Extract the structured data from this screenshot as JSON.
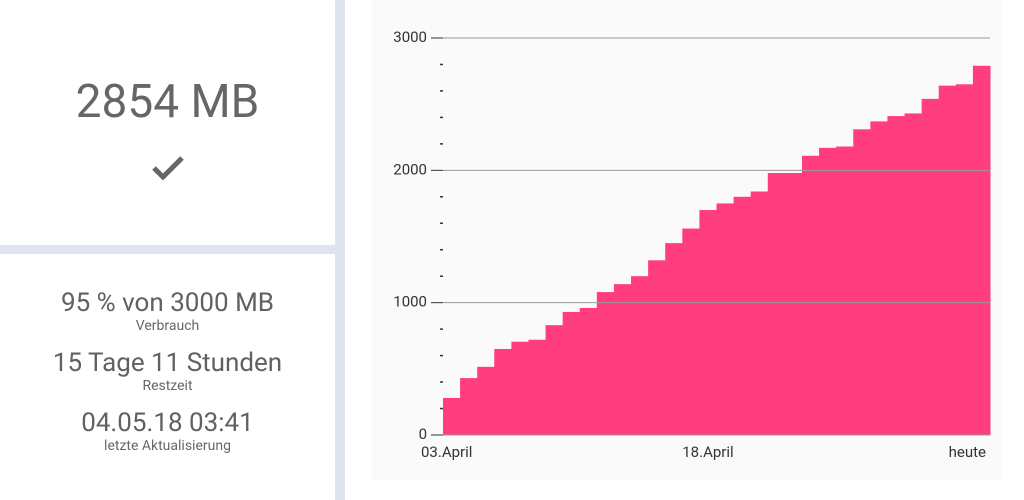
{
  "summary": {
    "amount": "2854 MB",
    "usage": "95 % von 3000 MB",
    "usage_label": "Verbrauch",
    "remaining": "15 Tage 11 Stunden",
    "remaining_label": "Restzeit",
    "updated": "04.05.18 03:41",
    "updated_label": "letzte Aktualisierung"
  },
  "chart_data": {
    "type": "step-area",
    "color": "#ff3d7f",
    "categories": [
      "03.April",
      null,
      null,
      null,
      null,
      null,
      null,
      null,
      null,
      null,
      null,
      null,
      null,
      null,
      null,
      "18.April",
      null,
      null,
      null,
      null,
      null,
      null,
      null,
      null,
      null,
      null,
      null,
      null,
      null,
      null,
      null,
      "heute"
    ],
    "values": [
      280,
      430,
      515,
      650,
      705,
      720,
      830,
      930,
      960,
      1080,
      1140,
      1200,
      1320,
      1450,
      1560,
      1700,
      1750,
      1800,
      1840,
      1980,
      1980,
      2110,
      2170,
      2180,
      2310,
      2370,
      2410,
      2430,
      2540,
      2640,
      2650,
      2790
    ],
    "ylim": [
      0,
      3000
    ],
    "yticks": [
      0,
      1000,
      2000,
      3000
    ],
    "yminorticks": [
      200,
      400,
      600,
      800,
      1200,
      1400,
      1600,
      1800,
      2200,
      2400,
      2600,
      2800
    ],
    "grid": true
  }
}
